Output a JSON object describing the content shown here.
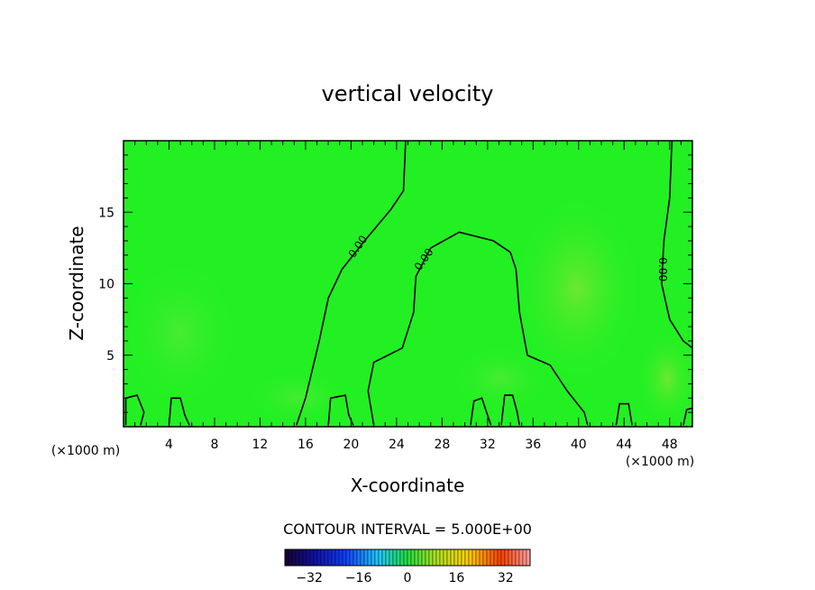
{
  "chart_data": {
    "type": "heatmap",
    "title": "vertical velocity",
    "xlabel": "X-coordinate",
    "ylabel": "Z-coordinate",
    "x_unit": "(×1000 m)",
    "y_unit": "(×1000 m)",
    "xlim": [
      0,
      50
    ],
    "ylim": [
      0,
      20
    ],
    "x_ticks": [
      4,
      8,
      12,
      16,
      20,
      24,
      28,
      32,
      36,
      40,
      44,
      48
    ],
    "y_ticks": [
      5,
      10,
      15
    ],
    "background_color": "#22f022",
    "contour_label": "0.00",
    "contour_lines": [
      {
        "level": 0,
        "points": [
          [
            24.8,
            20
          ],
          [
            24.6,
            16.5
          ],
          [
            23.5,
            15.2
          ],
          [
            21.2,
            13.0
          ],
          [
            19.2,
            11.0
          ],
          [
            18.0,
            9.0
          ],
          [
            17.2,
            6.0
          ],
          [
            16.0,
            2.0
          ],
          [
            15.2,
            0.1
          ]
        ]
      },
      {
        "level": 0,
        "points": [
          [
            22.0,
            0.1
          ],
          [
            21.5,
            2.5
          ],
          [
            22.0,
            4.5
          ],
          [
            24.5,
            5.5
          ],
          [
            25.5,
            8.0
          ],
          [
            25.7,
            10.5
          ],
          [
            27.0,
            12.5
          ],
          [
            29.5,
            13.6
          ],
          [
            32.5,
            13.0
          ],
          [
            34.0,
            12.2
          ],
          [
            34.5,
            11.0
          ],
          [
            34.8,
            8.0
          ],
          [
            35.5,
            5.0
          ],
          [
            37.5,
            4.3
          ],
          [
            39.0,
            2.5
          ],
          [
            40.5,
            1.0
          ],
          [
            40.8,
            0.1
          ]
        ]
      },
      {
        "level": 0,
        "points": [
          [
            48.2,
            20
          ],
          [
            48.0,
            16.0
          ],
          [
            47.5,
            13.0
          ],
          [
            47.3,
            10.0
          ],
          [
            48.0,
            7.5
          ],
          [
            49.2,
            6.0
          ],
          [
            50.0,
            5.5
          ]
        ]
      },
      {
        "level": 0,
        "points": [
          [
            0.2,
            0.1
          ],
          [
            0.2,
            2.0
          ],
          [
            1.2,
            2.2
          ],
          [
            1.8,
            1.0
          ],
          [
            1.5,
            0.1
          ]
        ]
      },
      {
        "level": 0,
        "points": [
          [
            4.0,
            0.1
          ],
          [
            4.2,
            2.0
          ],
          [
            5.0,
            2.0
          ],
          [
            5.4,
            0.8
          ],
          [
            5.8,
            0.1
          ]
        ]
      },
      {
        "level": 0,
        "points": [
          [
            18.0,
            0.1
          ],
          [
            18.2,
            2.0
          ],
          [
            19.5,
            2.2
          ],
          [
            19.8,
            0.8
          ],
          [
            20.2,
            0.1
          ]
        ]
      },
      {
        "level": 0,
        "points": [
          [
            30.5,
            0.1
          ],
          [
            30.8,
            1.8
          ],
          [
            31.5,
            2.0
          ],
          [
            32.0,
            0.8
          ],
          [
            32.3,
            0.1
          ]
        ]
      },
      {
        "level": 0,
        "points": [
          [
            33.2,
            0.1
          ],
          [
            33.5,
            2.2
          ],
          [
            34.2,
            2.2
          ],
          [
            34.6,
            1.0
          ],
          [
            34.8,
            0.1
          ]
        ]
      },
      {
        "level": 0,
        "points": [
          [
            43.3,
            0.1
          ],
          [
            43.6,
            1.6
          ],
          [
            44.4,
            1.6
          ],
          [
            44.7,
            0.1
          ]
        ]
      },
      {
        "level": 0,
        "points": [
          [
            49.2,
            0.1
          ],
          [
            49.5,
            1.2
          ],
          [
            50.0,
            1.3
          ]
        ]
      }
    ],
    "contour_label_positions": [
      [
        20.6,
        12.6
      ],
      [
        26.4,
        11.7
      ],
      [
        47.4,
        11.0
      ]
    ],
    "color_scale": {
      "min": -40,
      "max": 40,
      "ticks": [
        -32,
        -16,
        0,
        16,
        32
      ],
      "tick_labels": [
        "−32",
        "−16",
        "0",
        "16",
        "32"
      ]
    },
    "contour_interval_label": "CONTOUR INTERVAL = 5.000E+00"
  }
}
